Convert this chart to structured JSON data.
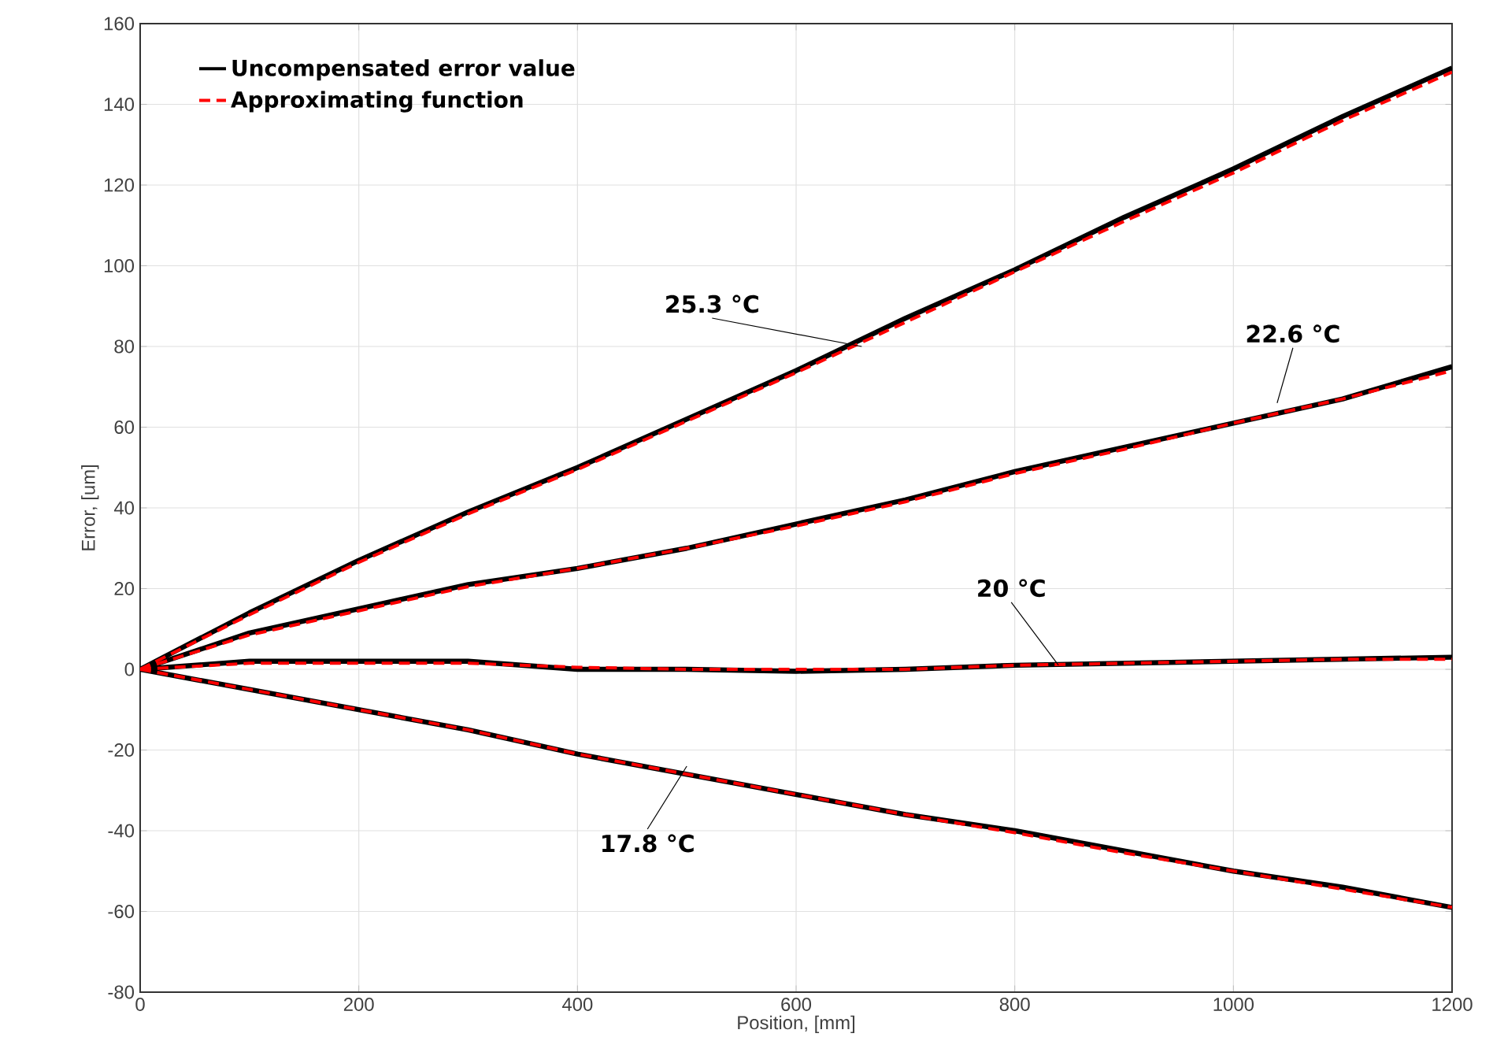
{
  "chart_data": {
    "type": "line",
    "xlabel": "Position, [mm]",
    "ylabel": "Error, [um]",
    "x": [
      0,
      100,
      200,
      300,
      400,
      500,
      600,
      700,
      800,
      900,
      1000,
      1100,
      1200
    ],
    "series": [
      {
        "name": "Uncompensated error value",
        "color": "#000000",
        "line_style": "solid",
        "values": [
          0,
          14,
          27,
          39,
          50,
          62,
          74,
          87,
          99,
          112,
          124,
          137,
          149
        ]
      },
      {
        "color": "#000000",
        "line_style": "solid",
        "values": [
          0,
          9,
          15,
          21,
          25,
          30,
          36,
          42,
          49,
          55,
          61,
          67,
          75
        ]
      },
      {
        "color": "#000000",
        "line_style": "solid",
        "values": [
          0,
          2,
          2,
          2,
          0,
          0,
          -0.5,
          0,
          1,
          1.5,
          2,
          2.5,
          3
        ]
      },
      {
        "color": "#000000",
        "line_style": "solid",
        "values": [
          0,
          -5,
          -10,
          -15,
          -21,
          -26,
          -31,
          -36,
          -40,
          -45,
          -50,
          -54,
          -59
        ]
      },
      {
        "name": "Approximating function",
        "color": "#ff0000",
        "line_style": "dashed",
        "values": [
          0,
          13.5,
          26.5,
          38.5,
          49.5,
          61.5,
          73.5,
          86,
          98.5,
          111,
          123,
          136,
          148
        ]
      },
      {
        "color": "#ff0000",
        "line_style": "dashed",
        "values": [
          0,
          8.5,
          14.5,
          20.5,
          25,
          30,
          35.5,
          41.5,
          48.5,
          54.5,
          61,
          67,
          74
        ]
      },
      {
        "color": "#ff0000",
        "line_style": "dashed",
        "values": [
          0,
          1.5,
          1.5,
          1.5,
          0.5,
          0,
          0,
          0,
          1,
          1.5,
          2,
          2.5,
          2.5
        ]
      },
      {
        "color": "#ff0000",
        "line_style": "dashed",
        "values": [
          0,
          -5,
          -10,
          -15,
          -21,
          -26,
          -31,
          -36,
          -40.5,
          -45.5,
          -50,
          -54.5,
          -59
        ]
      }
    ],
    "annotations": [
      {
        "text": "25.3 °C",
        "x": 660,
        "y": 80
      },
      {
        "text": "22.6 °C",
        "x": 1040,
        "y": 66
      },
      {
        "text": "20 °C",
        "x": 840,
        "y": 1
      },
      {
        "text": "17.8 °C",
        "x": 500,
        "y": -24
      }
    ],
    "xlim": [
      0,
      1200
    ],
    "ylim": [
      -80,
      160
    ],
    "xticks": [
      0,
      200,
      400,
      600,
      800,
      1000,
      1200
    ],
    "yticks": [
      -80,
      -60,
      -40,
      -20,
      0,
      20,
      40,
      60,
      80,
      100,
      120,
      140,
      160
    ],
    "grid": true,
    "legend": "top left",
    "marker": "none"
  }
}
